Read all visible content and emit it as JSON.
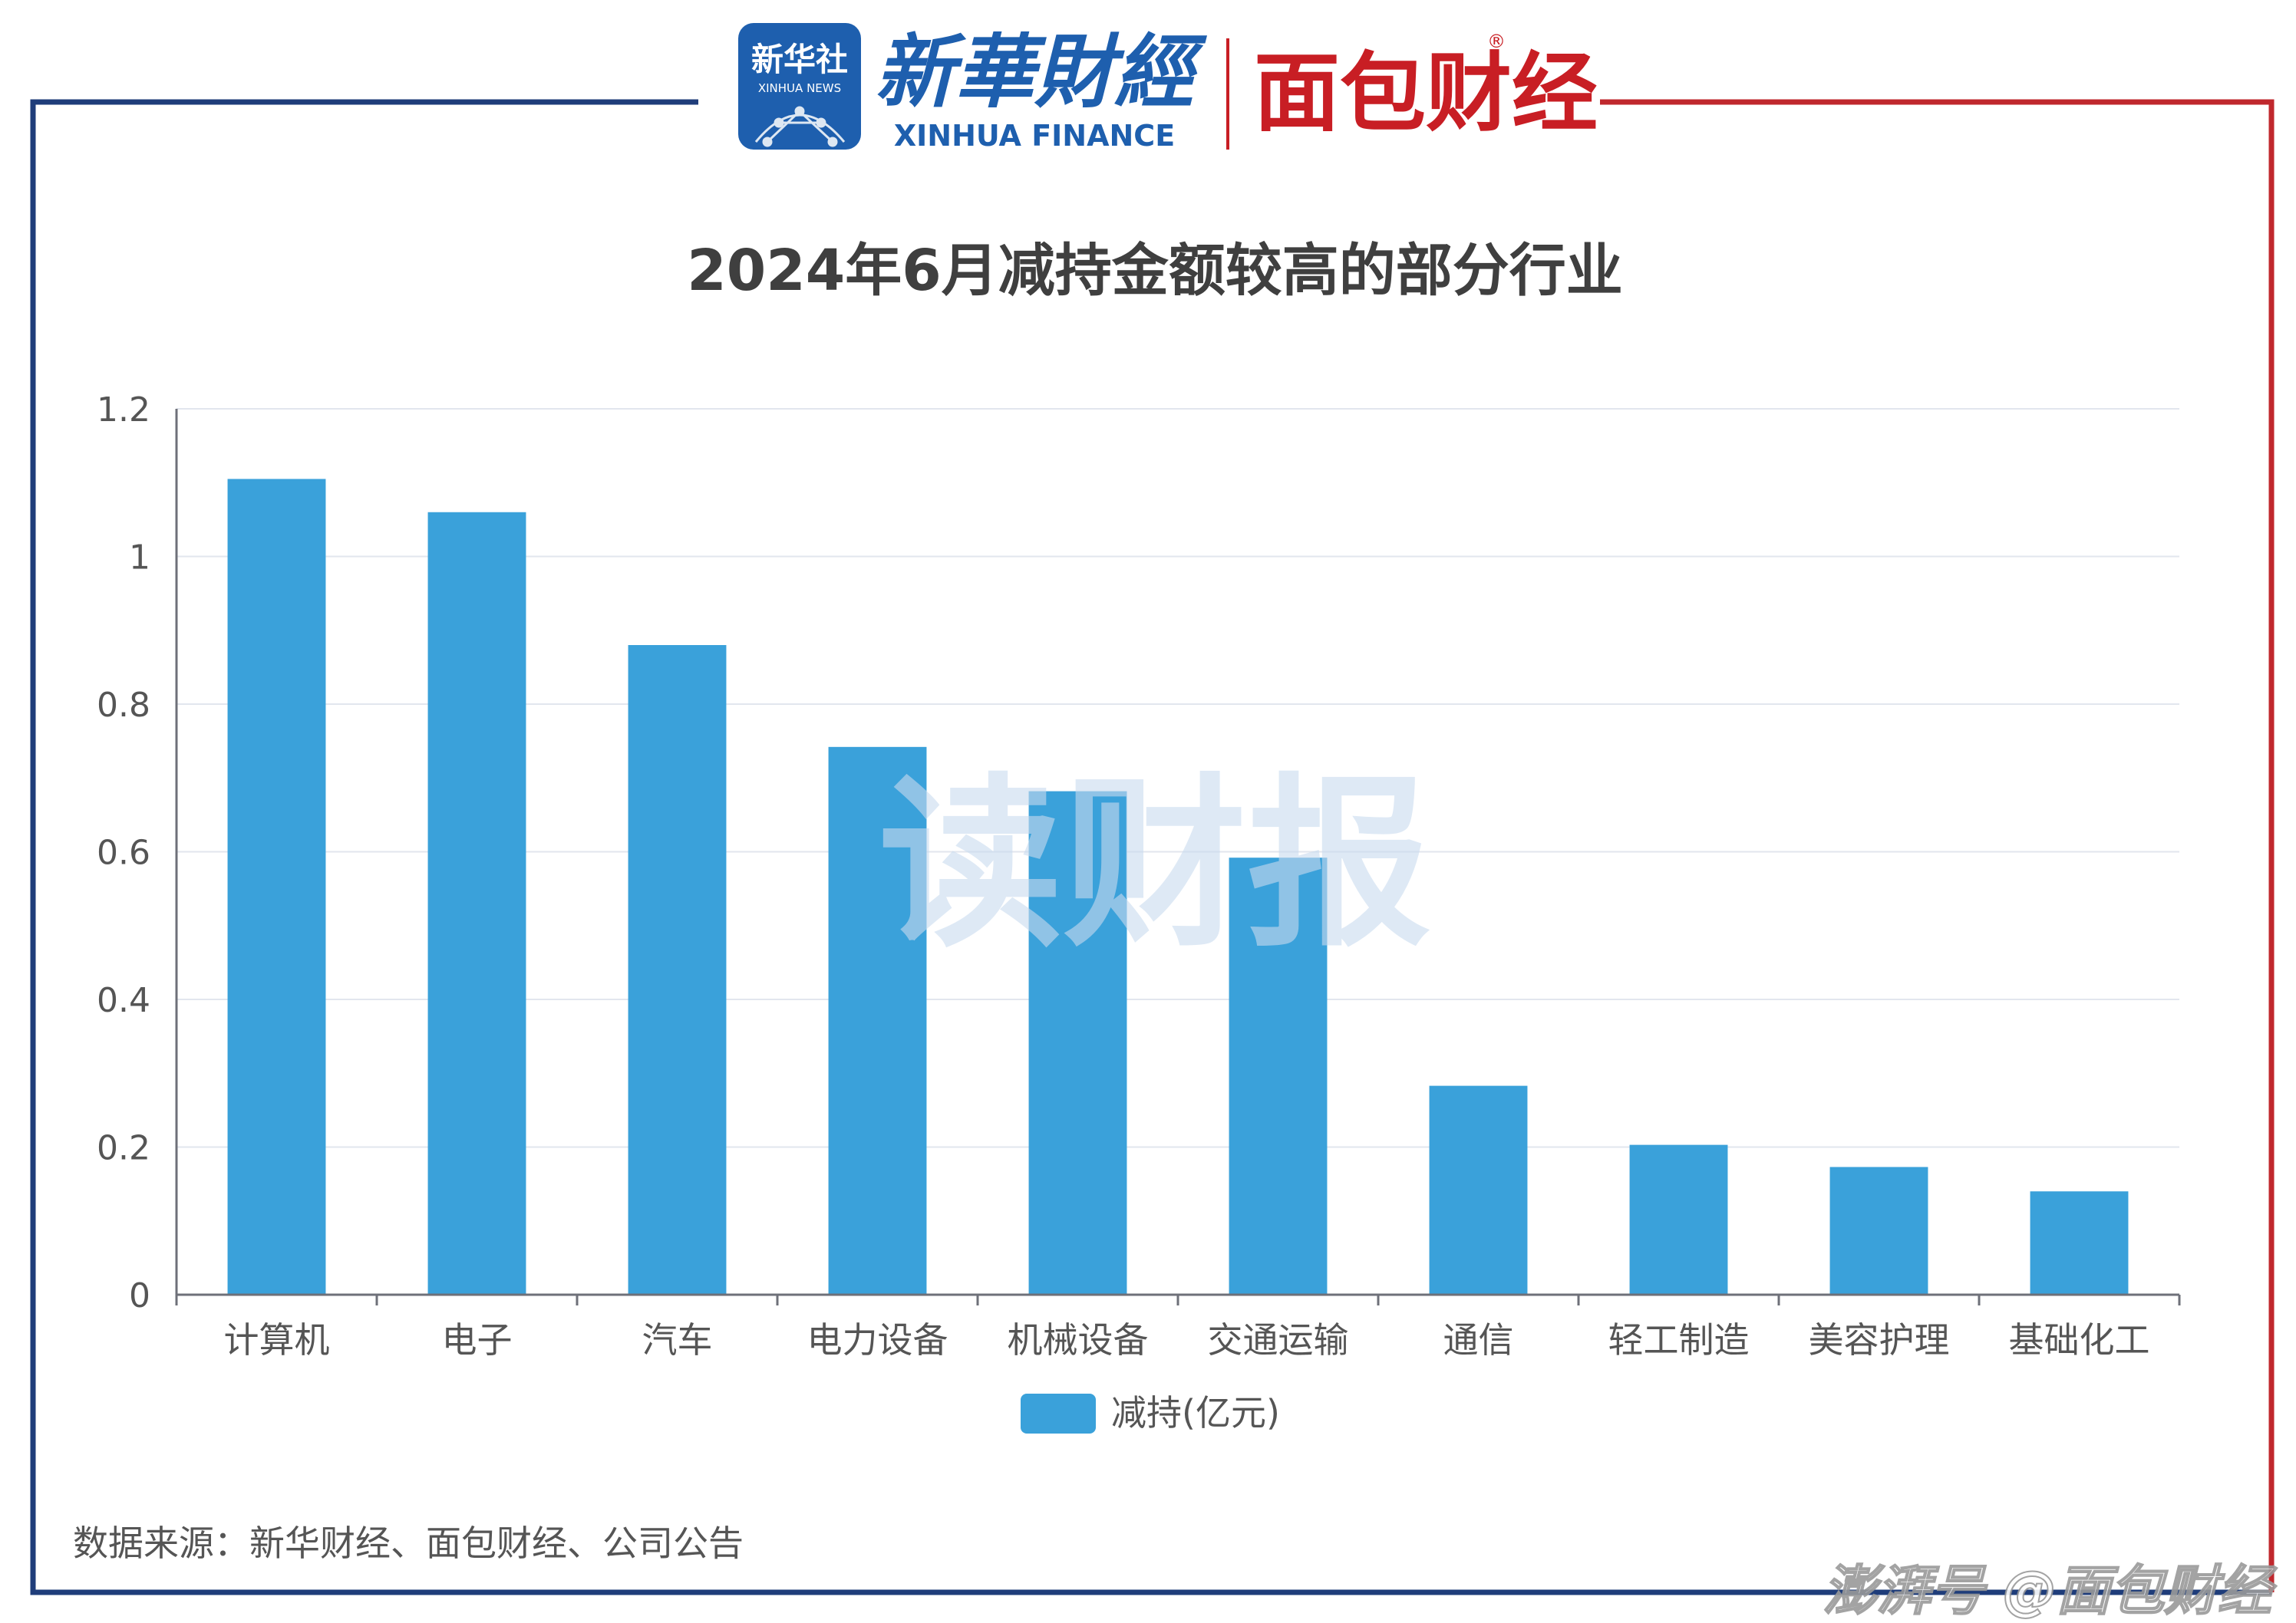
{
  "header": {
    "xinhua_news_badge": "新华社",
    "xinhua_news_badge_en": "XINHUA NEWS",
    "xinhua_finance_cn": "新華財經",
    "xinhua_finance_en": "XINHUA FINANCE",
    "mianbao_logo": "面包财经",
    "registered_mark": "®"
  },
  "watermark": "读财报",
  "source_note": "数据来源：新华财经、面包财经、公司公告",
  "footer_watermark": "澎湃号 @面包财经",
  "colors": {
    "bar": "#3AA1DA",
    "frame_left": "#1F3D7A",
    "frame_right": "#C0282D",
    "title": "#3F3F3F",
    "axis_text": "#555555",
    "grid": "#E2E6EE",
    "logo_blue": "#1E5FAE",
    "logo_red": "#C81E24",
    "watermark": "#C9DBEF"
  },
  "chart_data": {
    "type": "bar",
    "title": "2024年6月减持金额较高的部分行业",
    "categories": [
      "计算机",
      "电子",
      "汽车",
      "电力设备",
      "机械设备",
      "交通运输",
      "通信",
      "轻工制造",
      "美容护理",
      "基础化工"
    ],
    "series": [
      {
        "name": "减持(亿元)",
        "values": [
          1.105,
          1.06,
          0.88,
          0.742,
          0.682,
          0.592,
          0.283,
          0.203,
          0.173,
          0.14
        ]
      }
    ],
    "y_ticks": [
      "0",
      "0.2",
      "0.4",
      "0.6",
      "0.8",
      "1",
      "1.2"
    ],
    "ylim": [
      0,
      1.2
    ],
    "grid": true,
    "legend_position": "bottom-center",
    "xlabel": "",
    "ylabel": ""
  }
}
